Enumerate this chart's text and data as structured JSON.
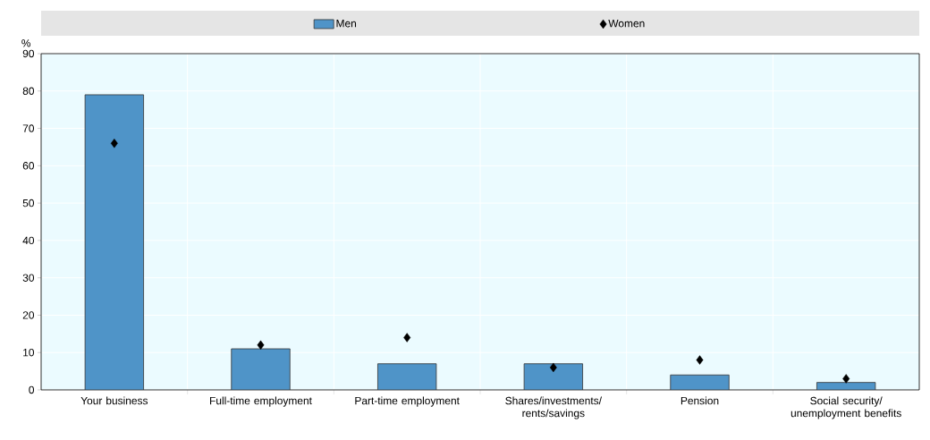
{
  "chart_data": {
    "type": "bar",
    "ylabel": "%",
    "categories": [
      "Your business",
      "Full-time employment",
      "Part-time employment",
      "Shares/investments/ rents/savings",
      "Pension",
      "Social security/ unemployment benefits"
    ],
    "series": [
      {
        "name": "Men",
        "color": "#4f94c8",
        "values": [
          79,
          11,
          7,
          7,
          4,
          2
        ]
      },
      {
        "name": "Women",
        "type": "scatter",
        "color": "#000000",
        "marker": "diamond",
        "values": [
          66,
          12,
          14,
          6,
          8,
          3
        ]
      }
    ],
    "ylim": [
      0,
      90
    ],
    "yticks": [
      0,
      10,
      20,
      30,
      40,
      50,
      60,
      70,
      80,
      90
    ],
    "grid": true,
    "legend": "top"
  }
}
